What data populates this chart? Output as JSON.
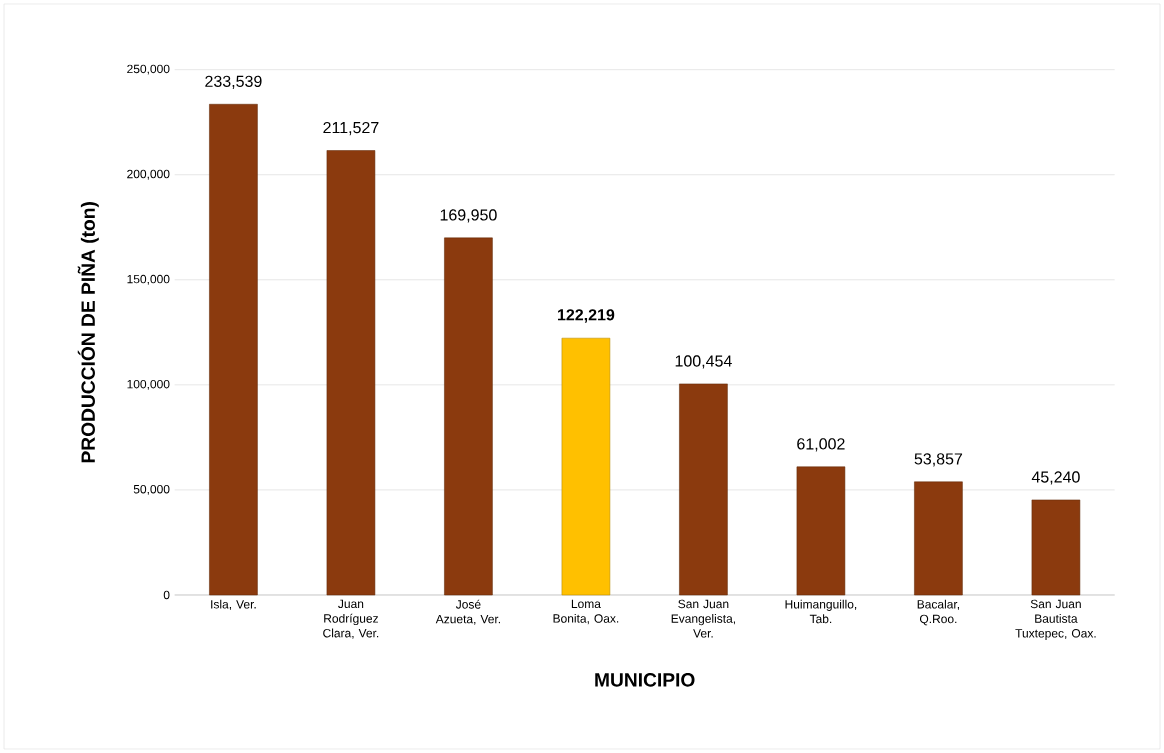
{
  "chart_data": {
    "type": "bar",
    "xlabel": "MUNICIPIO",
    "ylabel": "PRODUCCIÓN DE PIÑA  (ton)",
    "categories": [
      "Isla, Ver.",
      "Juan Rodríguez Clara, Ver.",
      "José Azueta, Ver.",
      "Loma Bonita, Oax.",
      "San Juan Evangelista, Ver.",
      "Huimanguillo, Tab.",
      "Bacalar, Q.Roo.",
      "San Juan Bautista Tuxtepec, Oax."
    ],
    "values": [
      233539,
      211527,
      169950,
      122219,
      100454,
      61002,
      53857,
      45240
    ],
    "colors": [
      "#8b3a0e",
      "#8b3a0e",
      "#8b3a0e",
      "#ffc000",
      "#8b3a0e",
      "#8b3a0e",
      "#8b3a0e",
      "#8b3a0e"
    ],
    "value_labels": [
      "233,539",
      "211,527",
      "169,950",
      "**122,219**",
      "100,454",
      "61,002",
      "53,857",
      "45,240"
    ],
    "ylim": [
      0,
      250000
    ],
    "yticks": [
      {
        "value": 0,
        "label": "0"
      },
      {
        "value": 50000,
        "label": "50,000"
      },
      {
        "value": 100000,
        "label": "100,000"
      },
      {
        "value": 150000,
        "label": "150,000"
      },
      {
        "value": 200000,
        "label": "200,000"
      },
      {
        "value": 250000,
        "label": "250,000"
      }
    ],
    "grid": "y"
  }
}
